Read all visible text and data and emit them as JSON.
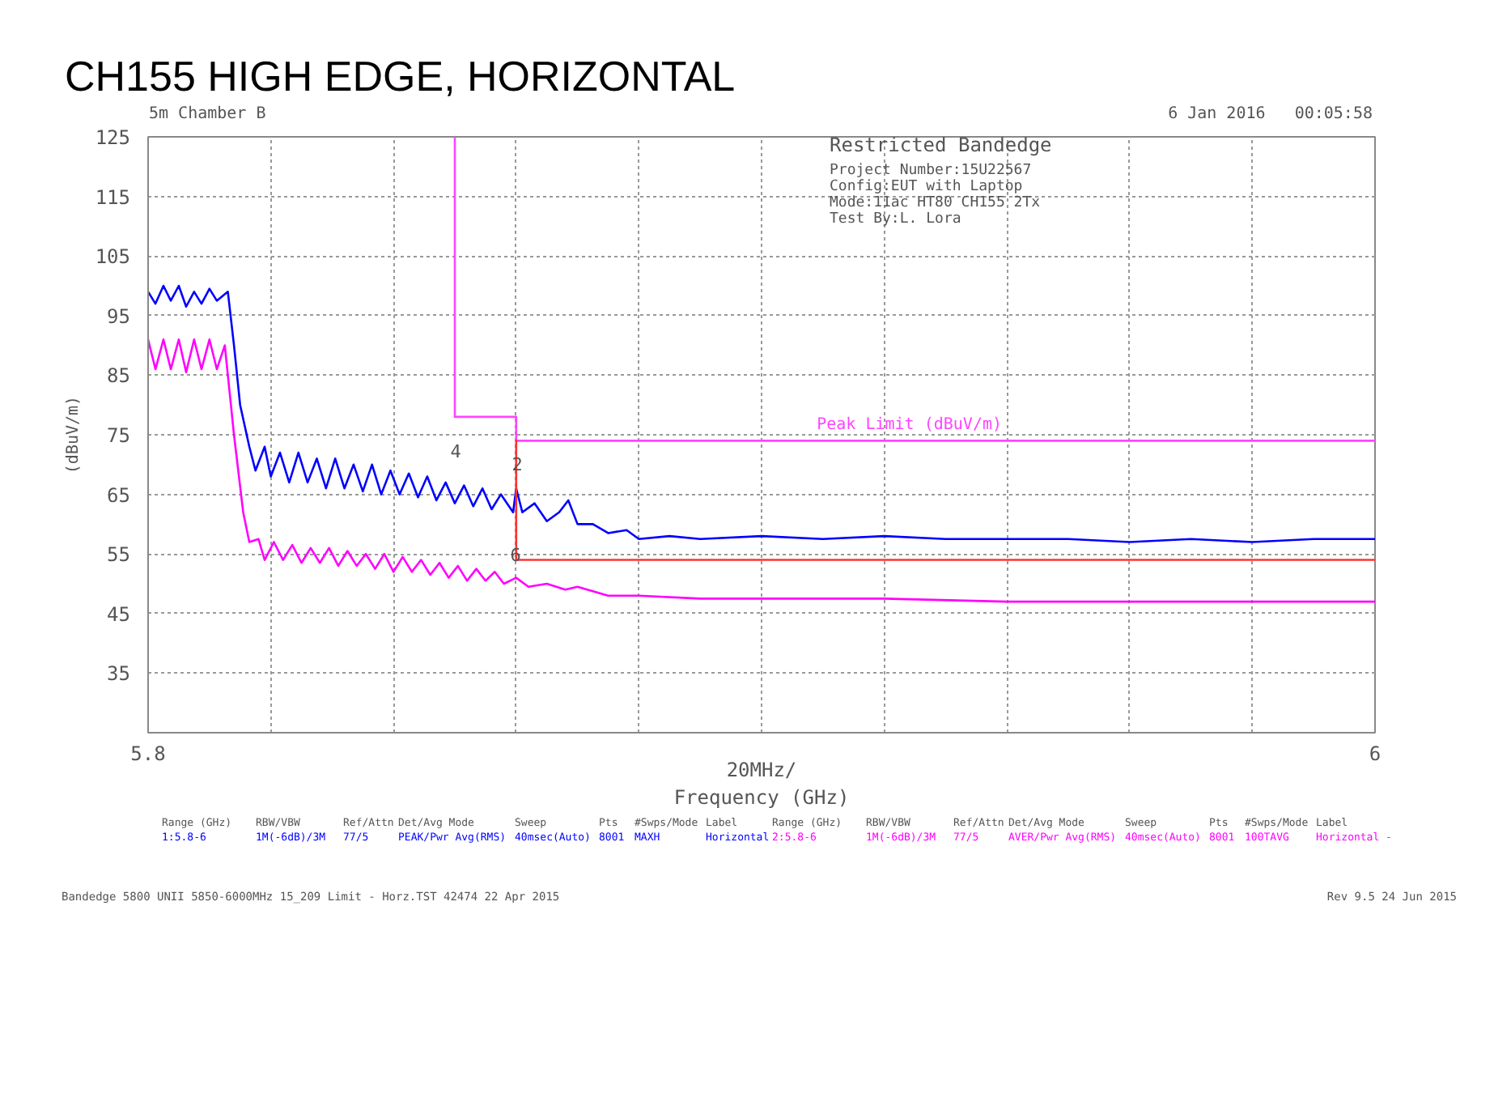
{
  "chart_data": {
    "type": "line",
    "title": "CH155 HIGH EDGE, HORIZONTAL",
    "xlabel": "Frequency (GHz)",
    "ylabel": "(dBuV/m)",
    "xlim": [
      5.8,
      6
    ],
    "ylim": [
      25,
      125
    ],
    "xticks": [
      {
        "value": 5.8,
        "label": "5.8"
      },
      {
        "value": 5.82,
        "label": null
      },
      {
        "value": 5.84,
        "label": null
      },
      {
        "value": 5.86,
        "label": null
      },
      {
        "value": 5.88,
        "label": null
      },
      {
        "value": 5.9,
        "label": null
      },
      {
        "value": 5.92,
        "label": null
      },
      {
        "value": 5.94,
        "label": null
      },
      {
        "value": 5.96,
        "label": null
      },
      {
        "value": 5.98,
        "label": null
      },
      {
        "value": 6,
        "label": "6"
      }
    ],
    "yticks": [
      35,
      45,
      55,
      65,
      75,
      85,
      95,
      105,
      115,
      125
    ],
    "grid": true,
    "line_style": "solid",
    "series": [
      {
        "color": "#0000ff",
        "x": [
          5.8,
          5.8012,
          5.8025,
          5.8037,
          5.805,
          5.8062,
          5.8075,
          5.8087,
          5.81,
          5.8112,
          5.813,
          5.814,
          5.815,
          5.8165,
          5.8175,
          5.819,
          5.82,
          5.8215,
          5.823,
          5.8245,
          5.826,
          5.8275,
          5.829,
          5.8305,
          5.832,
          5.8335,
          5.835,
          5.8365,
          5.838,
          5.8395,
          5.841,
          5.8425,
          5.844,
          5.8455,
          5.847,
          5.8485,
          5.85,
          5.8515,
          5.853,
          5.8545,
          5.856,
          5.8575,
          5.8595,
          5.86,
          5.861,
          5.863,
          5.865,
          5.867,
          5.8685,
          5.87,
          5.8725,
          5.875,
          5.878,
          5.88,
          5.885,
          5.89,
          5.9,
          5.91,
          5.92,
          5.93,
          5.94,
          5.95,
          5.96,
          5.97,
          5.98,
          5.99,
          6.0
        ],
        "values": [
          99,
          97,
          100,
          97.5,
          100,
          96.5,
          99,
          97,
          99.5,
          97.5,
          99,
          90,
          80,
          73,
          69,
          73,
          68,
          72,
          67,
          72,
          67,
          71,
          66,
          71,
          66,
          70,
          65.5,
          70,
          65,
          69,
          65,
          68.5,
          64.5,
          68,
          64,
          67,
          63.5,
          66.5,
          63,
          66,
          62.5,
          65,
          62,
          66,
          62,
          63.5,
          60.5,
          62,
          64,
          60,
          60,
          58.5,
          59,
          57.5,
          58,
          57.5,
          58,
          57.5,
          58,
          57.5,
          57.5,
          57.5,
          57,
          57.5,
          57,
          57.5,
          57.5
        ]
      },
      {
        "color": "#ff00ff",
        "x": [
          5.8,
          5.8012,
          5.8025,
          5.8037,
          5.805,
          5.8062,
          5.8075,
          5.8087,
          5.81,
          5.8112,
          5.8125,
          5.814,
          5.8155,
          5.8165,
          5.818,
          5.819,
          5.8205,
          5.822,
          5.8235,
          5.825,
          5.8265,
          5.828,
          5.8295,
          5.831,
          5.8325,
          5.834,
          5.8355,
          5.837,
          5.8385,
          5.84,
          5.8415,
          5.843,
          5.8445,
          5.846,
          5.8475,
          5.849,
          5.8505,
          5.852,
          5.8535,
          5.855,
          5.8565,
          5.858,
          5.86,
          5.862,
          5.865,
          5.868,
          5.87,
          5.875,
          5.88,
          5.89,
          5.9,
          5.92,
          5.94,
          5.96,
          5.98,
          6.0
        ],
        "values": [
          91,
          86,
          91,
          86,
          91,
          85.5,
          91,
          86,
          91,
          86,
          90,
          75,
          62,
          57,
          57.5,
          54,
          57,
          54,
          56.5,
          53.5,
          56,
          53.5,
          56,
          53,
          55.5,
          53,
          55,
          52.5,
          55,
          52,
          54.5,
          52,
          54,
          51.5,
          53.5,
          51,
          53,
          50.5,
          52.5,
          50.5,
          52,
          50,
          51,
          49.5,
          50,
          49,
          49.5,
          48,
          48,
          47.5,
          47.5,
          47.5,
          47,
          47,
          47,
          47
        ]
      },
      {
        "name": "Peak Limit (dBuV/m)",
        "color": "#ff44ff",
        "x": [
          5.85,
          5.85,
          5.86,
          5.86,
          6
        ],
        "values": [
          125,
          78,
          78,
          74,
          74
        ]
      },
      {
        "color": "#ff3333",
        "x": [
          5.86,
          5.86,
          6
        ],
        "values": [
          74,
          54,
          54
        ]
      }
    ],
    "annotations": [
      "5m Chamber B",
      "6 Jan 2016   00:05:58",
      "Restricted Bandedge",
      "Project Number:15U22567",
      "Config:EUT with Laptop",
      "Mode:11ac HT80 CH155 2Tx",
      "Test By:L. Lora",
      "Range (GHz)  RBW/VBW  Ref/Attn  Det/Avg Mode  Sweep  Pts  #Swps/Mode  Label",
      "1:5.8-6  1M(-6dB)/3M  77/5  PEAK/Pwr Avg(RMS)  40msec(Auto)  8001  MAXH  Horizontal",
      "Range (GHz)  RBW/VBW  Ref/Attn  Det/Avg Mode  Sweep  Pts  #Swps/Mode  Label",
      "2:5.8-6  1M(-6dB)/3M  77/5  AVER/Pwr Avg(RMS)  40msec(Auto)  8001  100TAVG  Horizontal -",
      "Bandedge 5800 UNII 5850-6000MHz 15_209 Limit - Horz.TST 42474 22 Apr 2015",
      "Rev 9.5 24 Jun 2015",
      "4",
      "2",
      "6",
      "20MHz/"
    ]
  }
}
